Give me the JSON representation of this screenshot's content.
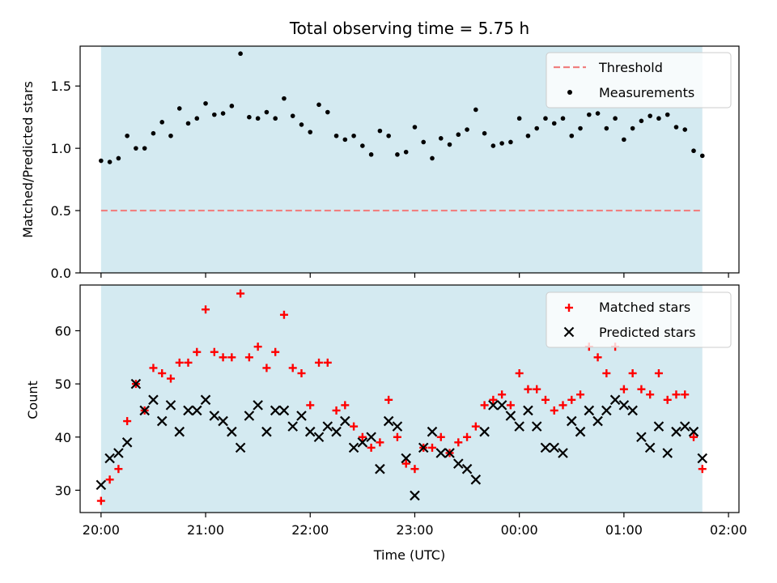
{
  "chart_data": [
    {
      "type": "scatter",
      "title": "Total observing time = 5.75 h",
      "ylabel": "Matched/Predicted stars",
      "xlabel": "",
      "ylim": [
        0,
        1.82
      ],
      "yticks": [
        0.0,
        0.5,
        1.0,
        1.5
      ],
      "yticklabels": [
        "0.0",
        "0.5",
        "1.0",
        "1.5"
      ],
      "xlim_hours": [
        19.8,
        26.1
      ],
      "shaded_range_hours": [
        20.0,
        25.75
      ],
      "shade_color": "#d4eaf1",
      "grid": false,
      "legend_placement": "top-right",
      "threshold": {
        "name": "Threshold",
        "value": 0.5,
        "color": "#f08080",
        "style": "dashed"
      },
      "series": [
        {
          "name": "Measurements",
          "color": "#000000",
          "marker": "dot",
          "x_hours": [
            20.0,
            20.0833,
            20.1667,
            20.25,
            20.3333,
            20.4167,
            20.5,
            20.5833,
            20.6667,
            20.75,
            20.8333,
            20.9167,
            21.0,
            21.0833,
            21.1667,
            21.25,
            21.3333,
            21.4167,
            21.5,
            21.5833,
            21.6667,
            21.75,
            21.8333,
            21.9167,
            22.0,
            22.0833,
            22.1667,
            22.25,
            22.3333,
            22.4167,
            22.5,
            22.5833,
            22.6667,
            22.75,
            22.8333,
            22.9167,
            23.0,
            23.0833,
            23.1667,
            23.25,
            23.3333,
            23.4167,
            23.5,
            23.5833,
            23.6667,
            23.75,
            23.8333,
            23.9167,
            24.0,
            24.0833,
            24.1667,
            24.25,
            24.3333,
            24.4167,
            24.5,
            24.5833,
            24.6667,
            24.75,
            24.8333,
            24.9167,
            25.0,
            25.0833,
            25.1667,
            25.25,
            25.3333,
            25.4167,
            25.5,
            25.5833,
            25.6667,
            25.75
          ],
          "y": [
            0.9,
            0.89,
            0.92,
            1.1,
            1.0,
            1.0,
            1.12,
            1.21,
            1.1,
            1.32,
            1.2,
            1.24,
            1.36,
            1.27,
            1.28,
            1.34,
            1.76,
            1.25,
            1.24,
            1.29,
            1.24,
            1.4,
            1.26,
            1.19,
            1.13,
            1.35,
            1.29,
            1.1,
            1.07,
            1.1,
            1.02,
            0.95,
            1.14,
            1.1,
            0.95,
            0.97,
            1.17,
            1.05,
            0.92,
            1.08,
            1.03,
            1.11,
            1.15,
            1.31,
            1.12,
            1.02,
            1.04,
            1.05,
            1.24,
            1.1,
            1.16,
            1.24,
            1.2,
            1.24,
            1.1,
            1.16,
            1.27,
            1.28,
            1.16,
            1.24,
            1.07,
            1.16,
            1.22,
            1.26,
            1.24,
            1.27,
            1.17,
            1.15,
            0.98,
            0.94
          ]
        }
      ]
    },
    {
      "type": "scatter",
      "title": "",
      "ylabel": "Count",
      "xlabel": "Time (UTC)",
      "ylim": [
        25.8,
        68.6
      ],
      "yticks": [
        30,
        40,
        50,
        60
      ],
      "yticklabels": [
        "30",
        "40",
        "50",
        "60"
      ],
      "xlim_hours": [
        19.8,
        26.1
      ],
      "xticks_hours": [
        20,
        21,
        22,
        23,
        24,
        25,
        26
      ],
      "xticklabels": [
        "20:00",
        "21:00",
        "22:00",
        "23:00",
        "00:00",
        "01:00",
        "02:00"
      ],
      "shaded_range_hours": [
        20.0,
        25.75
      ],
      "shade_color": "#d4eaf1",
      "grid": false,
      "legend_placement": "top-right",
      "series": [
        {
          "name": "Matched stars",
          "color": "#ff0000",
          "marker": "plus",
          "x_hours": [
            20.0,
            20.0833,
            20.1667,
            20.25,
            20.3333,
            20.4167,
            20.5,
            20.5833,
            20.6667,
            20.75,
            20.8333,
            20.9167,
            21.0,
            21.0833,
            21.1667,
            21.25,
            21.3333,
            21.4167,
            21.5,
            21.5833,
            21.6667,
            21.75,
            21.8333,
            21.9167,
            22.0,
            22.0833,
            22.1667,
            22.25,
            22.3333,
            22.4167,
            22.5,
            22.5833,
            22.6667,
            22.75,
            22.8333,
            22.9167,
            23.0,
            23.0833,
            23.1667,
            23.25,
            23.3333,
            23.4167,
            23.5,
            23.5833,
            23.6667,
            23.75,
            23.8333,
            23.9167,
            24.0,
            24.0833,
            24.1667,
            24.25,
            24.3333,
            24.4167,
            24.5,
            24.5833,
            24.6667,
            24.75,
            24.8333,
            24.9167,
            25.0,
            25.0833,
            25.1667,
            25.25,
            25.3333,
            25.4167,
            25.5,
            25.5833,
            25.6667,
            25.75
          ],
          "y": [
            28,
            32,
            34,
            43,
            50,
            45,
            53,
            52,
            51,
            54,
            54,
            56,
            64,
            56,
            55,
            55,
            67,
            55,
            57,
            53,
            56,
            63,
            53,
            52,
            46,
            54,
            54,
            45,
            46,
            42,
            40,
            38,
            39,
            47,
            40,
            35,
            34,
            38,
            38,
            40,
            37,
            39,
            40,
            42,
            46,
            47,
            48,
            46,
            52,
            49,
            49,
            47,
            45,
            46,
            47,
            48,
            57,
            55,
            52,
            57,
            49,
            52,
            49,
            48,
            52,
            47,
            48,
            48,
            40,
            34
          ]
        },
        {
          "name": "Predicted stars",
          "color": "#000000",
          "marker": "x",
          "x_hours": [
            20.0,
            20.0833,
            20.1667,
            20.25,
            20.3333,
            20.4167,
            20.5,
            20.5833,
            20.6667,
            20.75,
            20.8333,
            20.9167,
            21.0,
            21.0833,
            21.1667,
            21.25,
            21.3333,
            21.4167,
            21.5,
            21.5833,
            21.6667,
            21.75,
            21.8333,
            21.9167,
            22.0,
            22.0833,
            22.1667,
            22.25,
            22.3333,
            22.4167,
            22.5,
            22.5833,
            22.6667,
            22.75,
            22.8333,
            22.9167,
            23.0,
            23.0833,
            23.1667,
            23.25,
            23.3333,
            23.4167,
            23.5,
            23.5833,
            23.6667,
            23.75,
            23.8333,
            23.9167,
            24.0,
            24.0833,
            24.1667,
            24.25,
            24.3333,
            24.4167,
            24.5,
            24.5833,
            24.6667,
            24.75,
            24.8333,
            24.9167,
            25.0,
            25.0833,
            25.1667,
            25.25,
            25.3333,
            25.4167,
            25.5,
            25.5833,
            25.6667,
            25.75
          ],
          "y": [
            31,
            36,
            37,
            39,
            50,
            45,
            47,
            43,
            46,
            41,
            45,
            45,
            47,
            44,
            43,
            41,
            38,
            44,
            46,
            41,
            45,
            45,
            42,
            44,
            41,
            40,
            42,
            41,
            43,
            38,
            39,
            40,
            34,
            43,
            42,
            36,
            29,
            38,
            41,
            37,
            37,
            35,
            34,
            32,
            41,
            46,
            46,
            44,
            42,
            45,
            42,
            38,
            38,
            37,
            43,
            41,
            45,
            43,
            45,
            47,
            46,
            45,
            40,
            38,
            42,
            37,
            41,
            42,
            41,
            36
          ]
        }
      ]
    }
  ]
}
